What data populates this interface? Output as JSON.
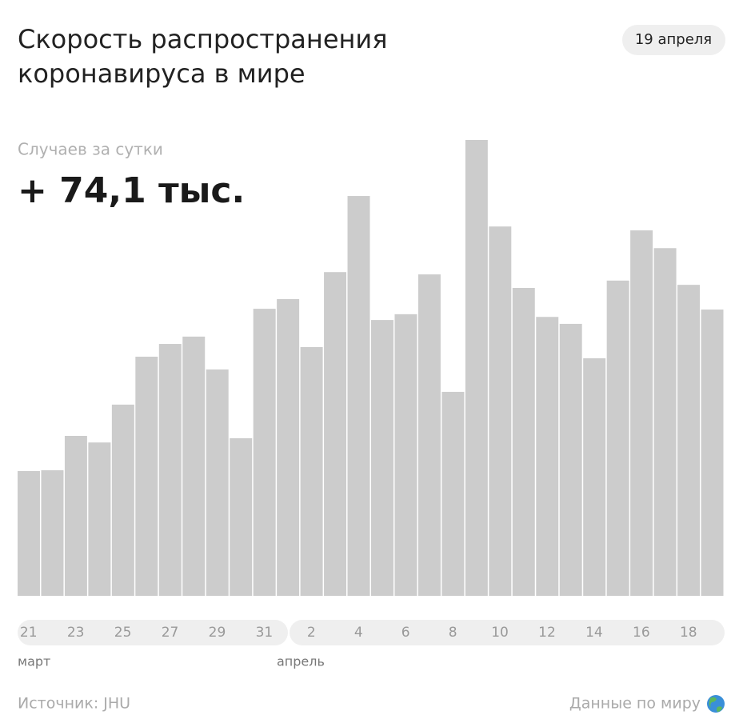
{
  "chart_data": {
    "type": "bar",
    "title": [
      "Скорость распространения",
      "коронавируса в мире"
    ],
    "date_badge": "19 апреля",
    "subtitle": "Случаев за сутки",
    "headline": "+ 74,1 тыс.",
    "categories": [
      "21",
      null,
      "23",
      null,
      "25",
      null,
      "27",
      null,
      "29",
      null,
      "31",
      null,
      "2",
      null,
      "4",
      null,
      "6",
      null,
      "8",
      null,
      "10",
      null,
      "12",
      null,
      "14",
      null,
      "16",
      null,
      "18",
      null
    ],
    "values": [
      32.3,
      32.5,
      41.4,
      39.7,
      49.5,
      61.9,
      65.2,
      67.1,
      58.6,
      40.8,
      74.3,
      76.8,
      64.4,
      83.8,
      103.5,
      71.4,
      72.9,
      83.2,
      52.8,
      118.0,
      95.6,
      79.7,
      72.2,
      70.4,
      61.5,
      81.6,
      94.6,
      90.0,
      80.5,
      74.1
    ],
    "color": "#cccccc",
    "month_labels": [
      "март",
      "апрель"
    ],
    "source": "Источник: JHU",
    "link": "Данные по миру"
  }
}
